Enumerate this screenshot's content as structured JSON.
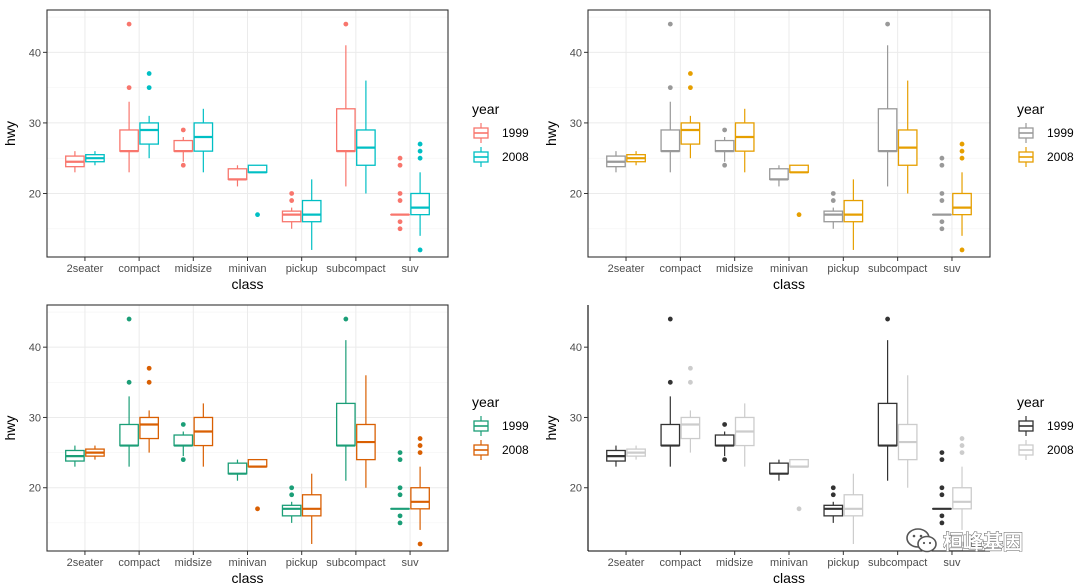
{
  "chart_data": [
    {
      "type": "boxplot",
      "xlabel": "class",
      "ylabel": "hwy",
      "ylim": [
        11,
        46
      ],
      "yticks": [
        20,
        30,
        40
      ],
      "grid": true,
      "categories": [
        "2seater",
        "compact",
        "midsize",
        "minivan",
        "pickup",
        "subcompact",
        "suv"
      ],
      "legend": {
        "title": "year",
        "position": "right",
        "entries": [
          "1999",
          "2008"
        ]
      },
      "colors": [
        "#F8766D",
        "#00BFC4"
      ],
      "style": "hollow",
      "series": [
        {
          "name": "1999",
          "boxes": [
            {
              "min": 23,
              "q1": 23.8,
              "median": 24.5,
              "q3": 25.3,
              "max": 26,
              "outliers": []
            },
            {
              "min": 23,
              "q1": 26,
              "median": 26,
              "q3": 29,
              "max": 33,
              "outliers": [
                35,
                44
              ]
            },
            {
              "min": 24.5,
              "q1": 26,
              "median": 26,
              "q3": 27.5,
              "max": 28,
              "outliers": [
                24,
                29
              ]
            },
            {
              "min": 21,
              "q1": 22,
              "median": 22,
              "q3": 23.5,
              "max": 24,
              "outliers": []
            },
            {
              "min": 15,
              "q1": 16,
              "median": 17,
              "q3": 17.5,
              "max": 18,
              "outliers": [
                19,
                20
              ]
            },
            {
              "min": 21,
              "q1": 26,
              "median": 26,
              "q3": 32,
              "max": 41,
              "outliers": [
                44
              ]
            },
            {
              "min": 17,
              "q1": 17,
              "median": 17,
              "q3": 17,
              "max": 17,
              "outliers": [
                15,
                16,
                19,
                20,
                24,
                25
              ]
            }
          ]
        },
        {
          "name": "2008",
          "boxes": [
            {
              "min": 24,
              "q1": 24.5,
              "median": 25,
              "q3": 25.5,
              "max": 26,
              "outliers": []
            },
            {
              "min": 25,
              "q1": 27,
              "median": 29,
              "q3": 30,
              "max": 31,
              "outliers": [
                35,
                37
              ]
            },
            {
              "min": 23,
              "q1": 26,
              "median": 28,
              "q3": 30,
              "max": 32,
              "outliers": []
            },
            {
              "min": 23,
              "q1": 23,
              "median": 23,
              "q3": 24,
              "max": 24,
              "outliers": [
                17
              ]
            },
            {
              "min": 12,
              "q1": 16,
              "median": 17,
              "q3": 19,
              "max": 22,
              "outliers": []
            },
            {
              "min": 20,
              "q1": 24,
              "median": 26.5,
              "q3": 29,
              "max": 36,
              "outliers": []
            },
            {
              "min": 14,
              "q1": 17,
              "median": 18,
              "q3": 20,
              "max": 23,
              "outliers": [
                12,
                25,
                26,
                27
              ]
            }
          ]
        }
      ]
    },
    {
      "type": "boxplot",
      "xlabel": "class",
      "ylabel": "hwy",
      "ylim": [
        11,
        46
      ],
      "yticks": [
        20,
        30,
        40
      ],
      "grid": true,
      "categories": [
        "2seater",
        "compact",
        "midsize",
        "minivan",
        "pickup",
        "subcompact",
        "suv"
      ],
      "legend": {
        "title": "year",
        "position": "right",
        "entries": [
          "1999",
          "2008"
        ]
      },
      "colors": [
        "#999999",
        "#E69F00"
      ],
      "style": "hollow",
      "series": [
        {
          "name": "1999",
          "boxes": [
            {
              "min": 23,
              "q1": 23.8,
              "median": 24.5,
              "q3": 25.3,
              "max": 26,
              "outliers": []
            },
            {
              "min": 23,
              "q1": 26,
              "median": 26,
              "q3": 29,
              "max": 33,
              "outliers": [
                35,
                44
              ]
            },
            {
              "min": 24.5,
              "q1": 26,
              "median": 26,
              "q3": 27.5,
              "max": 28,
              "outliers": [
                24,
                29
              ]
            },
            {
              "min": 21,
              "q1": 22,
              "median": 22,
              "q3": 23.5,
              "max": 24,
              "outliers": []
            },
            {
              "min": 15,
              "q1": 16,
              "median": 17,
              "q3": 17.5,
              "max": 18,
              "outliers": [
                19,
                20
              ]
            },
            {
              "min": 21,
              "q1": 26,
              "median": 26,
              "q3": 32,
              "max": 41,
              "outliers": [
                44
              ]
            },
            {
              "min": 17,
              "q1": 17,
              "median": 17,
              "q3": 17,
              "max": 17,
              "outliers": [
                15,
                16,
                19,
                20,
                24,
                25
              ]
            }
          ]
        },
        {
          "name": "2008",
          "boxes": [
            {
              "min": 24,
              "q1": 24.5,
              "median": 25,
              "q3": 25.5,
              "max": 26,
              "outliers": []
            },
            {
              "min": 25,
              "q1": 27,
              "median": 29,
              "q3": 30,
              "max": 31,
              "outliers": [
                35,
                37
              ]
            },
            {
              "min": 23,
              "q1": 26,
              "median": 28,
              "q3": 30,
              "max": 32,
              "outliers": []
            },
            {
              "min": 23,
              "q1": 23,
              "median": 23,
              "q3": 24,
              "max": 24,
              "outliers": [
                17
              ]
            },
            {
              "min": 12,
              "q1": 16,
              "median": 17,
              "q3": 19,
              "max": 22,
              "outliers": []
            },
            {
              "min": 20,
              "q1": 24,
              "median": 26.5,
              "q3": 29,
              "max": 36,
              "outliers": []
            },
            {
              "min": 14,
              "q1": 17,
              "median": 18,
              "q3": 20,
              "max": 23,
              "outliers": [
                12,
                25,
                26,
                27
              ]
            }
          ]
        }
      ]
    },
    {
      "type": "boxplot",
      "xlabel": "class",
      "ylabel": "hwy",
      "ylim": [
        11,
        46
      ],
      "yticks": [
        20,
        30,
        40
      ],
      "grid": true,
      "categories": [
        "2seater",
        "compact",
        "midsize",
        "minivan",
        "pickup",
        "subcompact",
        "suv"
      ],
      "legend": {
        "title": "year",
        "position": "right",
        "entries": [
          "1999",
          "2008"
        ]
      },
      "colors": [
        "#1B9E77",
        "#D95F02"
      ],
      "style": "hollow",
      "series": [
        {
          "name": "1999",
          "boxes": [
            {
              "min": 23,
              "q1": 23.8,
              "median": 24.5,
              "q3": 25.3,
              "max": 26,
              "outliers": []
            },
            {
              "min": 23,
              "q1": 26,
              "median": 26,
              "q3": 29,
              "max": 33,
              "outliers": [
                35,
                44
              ]
            },
            {
              "min": 24.5,
              "q1": 26,
              "median": 26,
              "q3": 27.5,
              "max": 28,
              "outliers": [
                24,
                29
              ]
            },
            {
              "min": 21,
              "q1": 22,
              "median": 22,
              "q3": 23.5,
              "max": 24,
              "outliers": []
            },
            {
              "min": 15,
              "q1": 16,
              "median": 17,
              "q3": 17.5,
              "max": 18,
              "outliers": [
                19,
                20
              ]
            },
            {
              "min": 21,
              "q1": 26,
              "median": 26,
              "q3": 32,
              "max": 41,
              "outliers": [
                44
              ]
            },
            {
              "min": 17,
              "q1": 17,
              "median": 17,
              "q3": 17,
              "max": 17,
              "outliers": [
                15,
                16,
                19,
                20,
                24,
                25
              ]
            }
          ]
        },
        {
          "name": "2008",
          "boxes": [
            {
              "min": 24,
              "q1": 24.5,
              "median": 25,
              "q3": 25.5,
              "max": 26,
              "outliers": []
            },
            {
              "min": 25,
              "q1": 27,
              "median": 29,
              "q3": 30,
              "max": 31,
              "outliers": [
                35,
                37
              ]
            },
            {
              "min": 23,
              "q1": 26,
              "median": 28,
              "q3": 30,
              "max": 32,
              "outliers": []
            },
            {
              "min": 23,
              "q1": 23,
              "median": 23,
              "q3": 24,
              "max": 24,
              "outliers": [
                17
              ]
            },
            {
              "min": 12,
              "q1": 16,
              "median": 17,
              "q3": 19,
              "max": 22,
              "outliers": []
            },
            {
              "min": 20,
              "q1": 24,
              "median": 26.5,
              "q3": 29,
              "max": 36,
              "outliers": []
            },
            {
              "min": 14,
              "q1": 17,
              "median": 18,
              "q3": 20,
              "max": 23,
              "outliers": [
                12,
                25,
                26,
                27
              ]
            }
          ]
        }
      ]
    },
    {
      "type": "boxplot",
      "xlabel": "class",
      "ylabel": "hwy",
      "ylim": [
        11,
        46
      ],
      "yticks": [
        20,
        30,
        40
      ],
      "grid": false,
      "categories": [
        "2seater",
        "compact",
        "midsize",
        "minivan",
        "pickup",
        "subcompact",
        "suv"
      ],
      "legend": {
        "title": "year",
        "position": "right",
        "entries": [
          "1999",
          "2008"
        ]
      },
      "colors": [
        "#333333",
        "#CCCCCC"
      ],
      "style": "hollow",
      "series": [
        {
          "name": "1999",
          "boxes": [
            {
              "min": 23,
              "q1": 23.8,
              "median": 24.5,
              "q3": 25.3,
              "max": 26,
              "outliers": []
            },
            {
              "min": 23,
              "q1": 26,
              "median": 26,
              "q3": 29,
              "max": 33,
              "outliers": [
                35,
                44
              ]
            },
            {
              "min": 24.5,
              "q1": 26,
              "median": 26,
              "q3": 27.5,
              "max": 28,
              "outliers": [
                24,
                29
              ]
            },
            {
              "min": 21,
              "q1": 22,
              "median": 22,
              "q3": 23.5,
              "max": 24,
              "outliers": []
            },
            {
              "min": 15,
              "q1": 16,
              "median": 17,
              "q3": 17.5,
              "max": 18,
              "outliers": [
                19,
                20
              ]
            },
            {
              "min": 21,
              "q1": 26,
              "median": 26,
              "q3": 32,
              "max": 41,
              "outliers": [
                44
              ]
            },
            {
              "min": 17,
              "q1": 17,
              "median": 17,
              "q3": 17,
              "max": 17,
              "outliers": [
                15,
                16,
                19,
                20,
                24,
                25
              ]
            }
          ]
        },
        {
          "name": "2008",
          "boxes": [
            {
              "min": 24,
              "q1": 24.5,
              "median": 25,
              "q3": 25.5,
              "max": 26,
              "outliers": []
            },
            {
              "min": 25,
              "q1": 27,
              "median": 29,
              "q3": 30,
              "max": 31,
              "outliers": [
                35,
                37
              ]
            },
            {
              "min": 23,
              "q1": 26,
              "median": 28,
              "q3": 30,
              "max": 32,
              "outliers": []
            },
            {
              "min": 23,
              "q1": 23,
              "median": 23,
              "q3": 24,
              "max": 24,
              "outliers": [
                17
              ]
            },
            {
              "min": 12,
              "q1": 16,
              "median": 17,
              "q3": 19,
              "max": 22,
              "outliers": []
            },
            {
              "min": 20,
              "q1": 24,
              "median": 26.5,
              "q3": 29,
              "max": 36,
              "outliers": []
            },
            {
              "min": 14,
              "q1": 17,
              "median": 18,
              "q3": 20,
              "max": 23,
              "outliers": [
                12,
                25,
                26,
                27
              ]
            }
          ]
        }
      ]
    }
  ],
  "watermark": {
    "text": "桓峰基因",
    "icon": "wechat-icon"
  }
}
